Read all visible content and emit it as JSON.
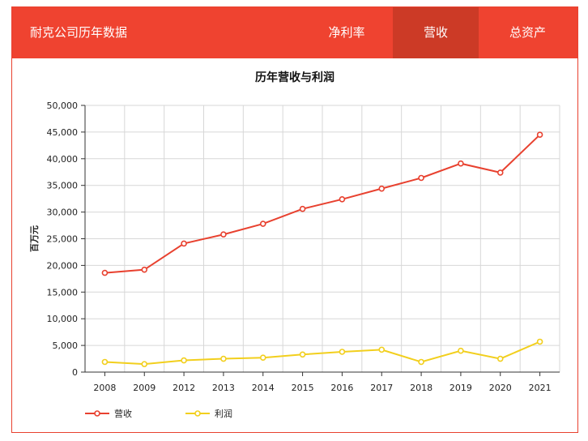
{
  "header": {
    "title": "耐克公司历年数据",
    "tabs": [
      {
        "label": "净利率",
        "active": false
      },
      {
        "label": "营收",
        "active": true
      },
      {
        "label": "总资产",
        "active": false
      }
    ]
  },
  "colors": {
    "header_bg": "#ef4330",
    "active_tab_bg": "#cc3a26",
    "series_revenue": "#e8412f",
    "series_profit": "#f2cf1d"
  },
  "chart_data": {
    "type": "line",
    "title": "历年营收与利润",
    "ylabel": "百万元",
    "xlabel": "",
    "x": [
      "2008",
      "2009",
      "2012",
      "2013",
      "2014",
      "2015",
      "2016",
      "2017",
      "2018",
      "2019",
      "2020",
      "2021"
    ],
    "ylim": [
      0,
      50000
    ],
    "yticks": [
      "0",
      "5,000",
      "10,000",
      "15,000",
      "20,000",
      "25,000",
      "30,000",
      "35,000",
      "40,000",
      "45,000",
      "50,000"
    ],
    "grid": true,
    "legend_position": "bottom-left",
    "series": [
      {
        "name": "营收",
        "color": "#e8412f",
        "values": [
          18600,
          19200,
          24100,
          25800,
          27800,
          30600,
          32400,
          34400,
          36400,
          39100,
          37400,
          44500
        ]
      },
      {
        "name": "利润",
        "color": "#f2cf1d",
        "values": [
          1900,
          1500,
          2200,
          2500,
          2700,
          3300,
          3800,
          4200,
          1900,
          4000,
          2500,
          5700
        ]
      }
    ]
  }
}
